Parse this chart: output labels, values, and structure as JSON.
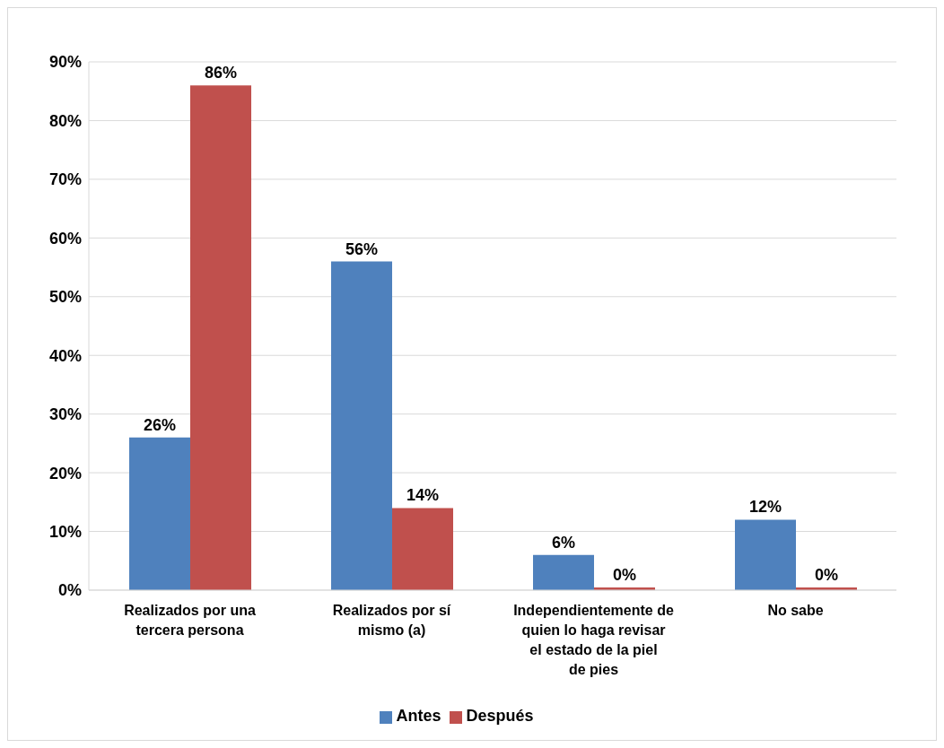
{
  "chart_data": {
    "type": "bar",
    "categories": [
      "Realizados por una tercera persona",
      "Realizados por sí mismo (a)",
      "Independientemente de quien lo haga revisar el estado de la piel de pies",
      "No sabe"
    ],
    "series": [
      {
        "name": "Antes",
        "color": "#4f81bd",
        "values": [
          26,
          56,
          6,
          12
        ],
        "value_labels": [
          "26%",
          "56%",
          "6%",
          "12%"
        ]
      },
      {
        "name": "Después",
        "color": "#c0504d",
        "values": [
          86,
          14,
          0,
          0
        ],
        "value_labels": [
          "86%",
          "14%",
          "0%",
          "0%"
        ]
      }
    ],
    "ylim": [
      0,
      90
    ],
    "yticks": [
      {
        "value": 0,
        "label": "0%"
      },
      {
        "value": 10,
        "label": "10%"
      },
      {
        "value": 20,
        "label": "20%"
      },
      {
        "value": 30,
        "label": "30%"
      },
      {
        "value": 40,
        "label": "40%"
      },
      {
        "value": 50,
        "label": "50%"
      },
      {
        "value": 60,
        "label": "60%"
      },
      {
        "value": 70,
        "label": "70%"
      },
      {
        "value": 80,
        "label": "80%"
      },
      {
        "value": 90,
        "label": "90%"
      }
    ],
    "grid": "y",
    "legend": "bottom"
  }
}
